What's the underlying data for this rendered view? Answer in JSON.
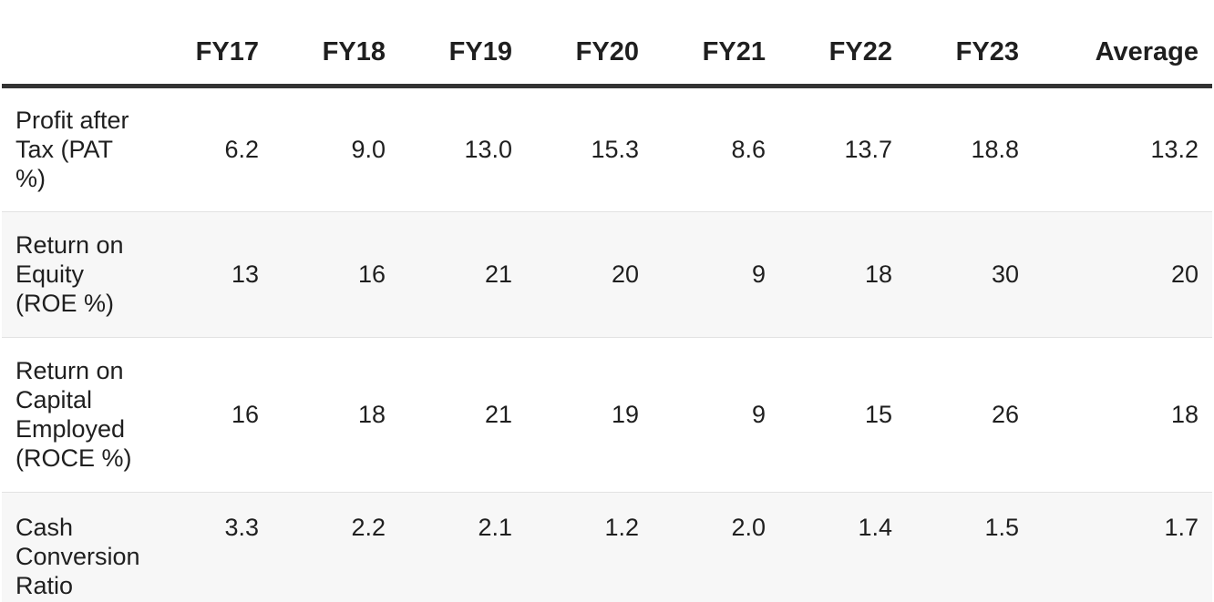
{
  "table": {
    "columns": [
      "",
      "FY17",
      "FY18",
      "FY19",
      "FY20",
      "FY21",
      "FY22",
      "FY23",
      "Average"
    ],
    "rows": [
      {
        "label": "Profit after Tax (PAT %)",
        "values": [
          "6.2",
          "9.0",
          "13.0",
          "15.3",
          "8.6",
          "13.7",
          "18.8",
          "13.2"
        ]
      },
      {
        "label": "Return on Equity (ROE %)",
        "values": [
          "13",
          "16",
          "21",
          "20",
          "9",
          "18",
          "30",
          "20"
        ]
      },
      {
        "label": "Return on Capital Employed (ROCE %)",
        "values": [
          "16",
          "18",
          "21",
          "19",
          "9",
          "15",
          "26",
          "18"
        ]
      },
      {
        "label": "Cash Conversion Ratio",
        "values": [
          "3.3",
          "2.2",
          "2.1",
          "1.2",
          "2.0",
          "1.4",
          "1.5",
          "1.7"
        ]
      }
    ]
  }
}
